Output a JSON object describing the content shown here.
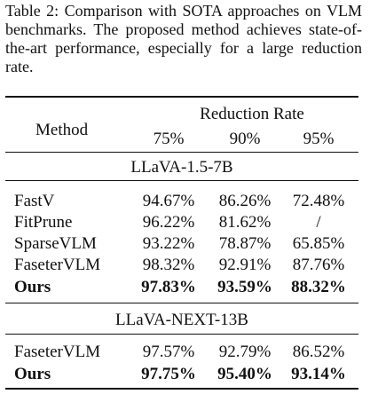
{
  "caption": "Table 2: Comparison with SOTA approaches on VLM benchmarks. The proposed method achieves state-of-the-art performance, especially for a large reduction rate.",
  "table": {
    "method_header": "Method",
    "group_header": "Reduction Rate",
    "rates": [
      "75%",
      "90%",
      "95%"
    ],
    "sections": [
      {
        "title": "LLaVA-1.5-7B",
        "rows": [
          {
            "method": "FastV",
            "values": [
              "94.67%",
              "86.26%",
              "72.48%"
            ],
            "bold": false
          },
          {
            "method": "FitPrune",
            "values": [
              "96.22%",
              "81.62%",
              "/"
            ],
            "bold": false
          },
          {
            "method": "SparseVLM",
            "values": [
              "93.22%",
              "78.87%",
              "65.85%"
            ],
            "bold": false
          },
          {
            "method": "FaseterVLM",
            "values": [
              "98.32%",
              "92.91%",
              "87.76%"
            ],
            "bold": false
          },
          {
            "method": "Ours",
            "values": [
              "97.83%",
              "93.59%",
              "88.32%"
            ],
            "bold": true
          }
        ]
      },
      {
        "title": "LLaVA-NEXT-13B",
        "rows": [
          {
            "method": "FaseterVLM",
            "values": [
              "97.57%",
              "92.79%",
              "86.52%"
            ],
            "bold": false
          },
          {
            "method": "Ours",
            "values": [
              "97.75%",
              "95.40%",
              "93.14%"
            ],
            "bold": true
          }
        ]
      }
    ]
  }
}
